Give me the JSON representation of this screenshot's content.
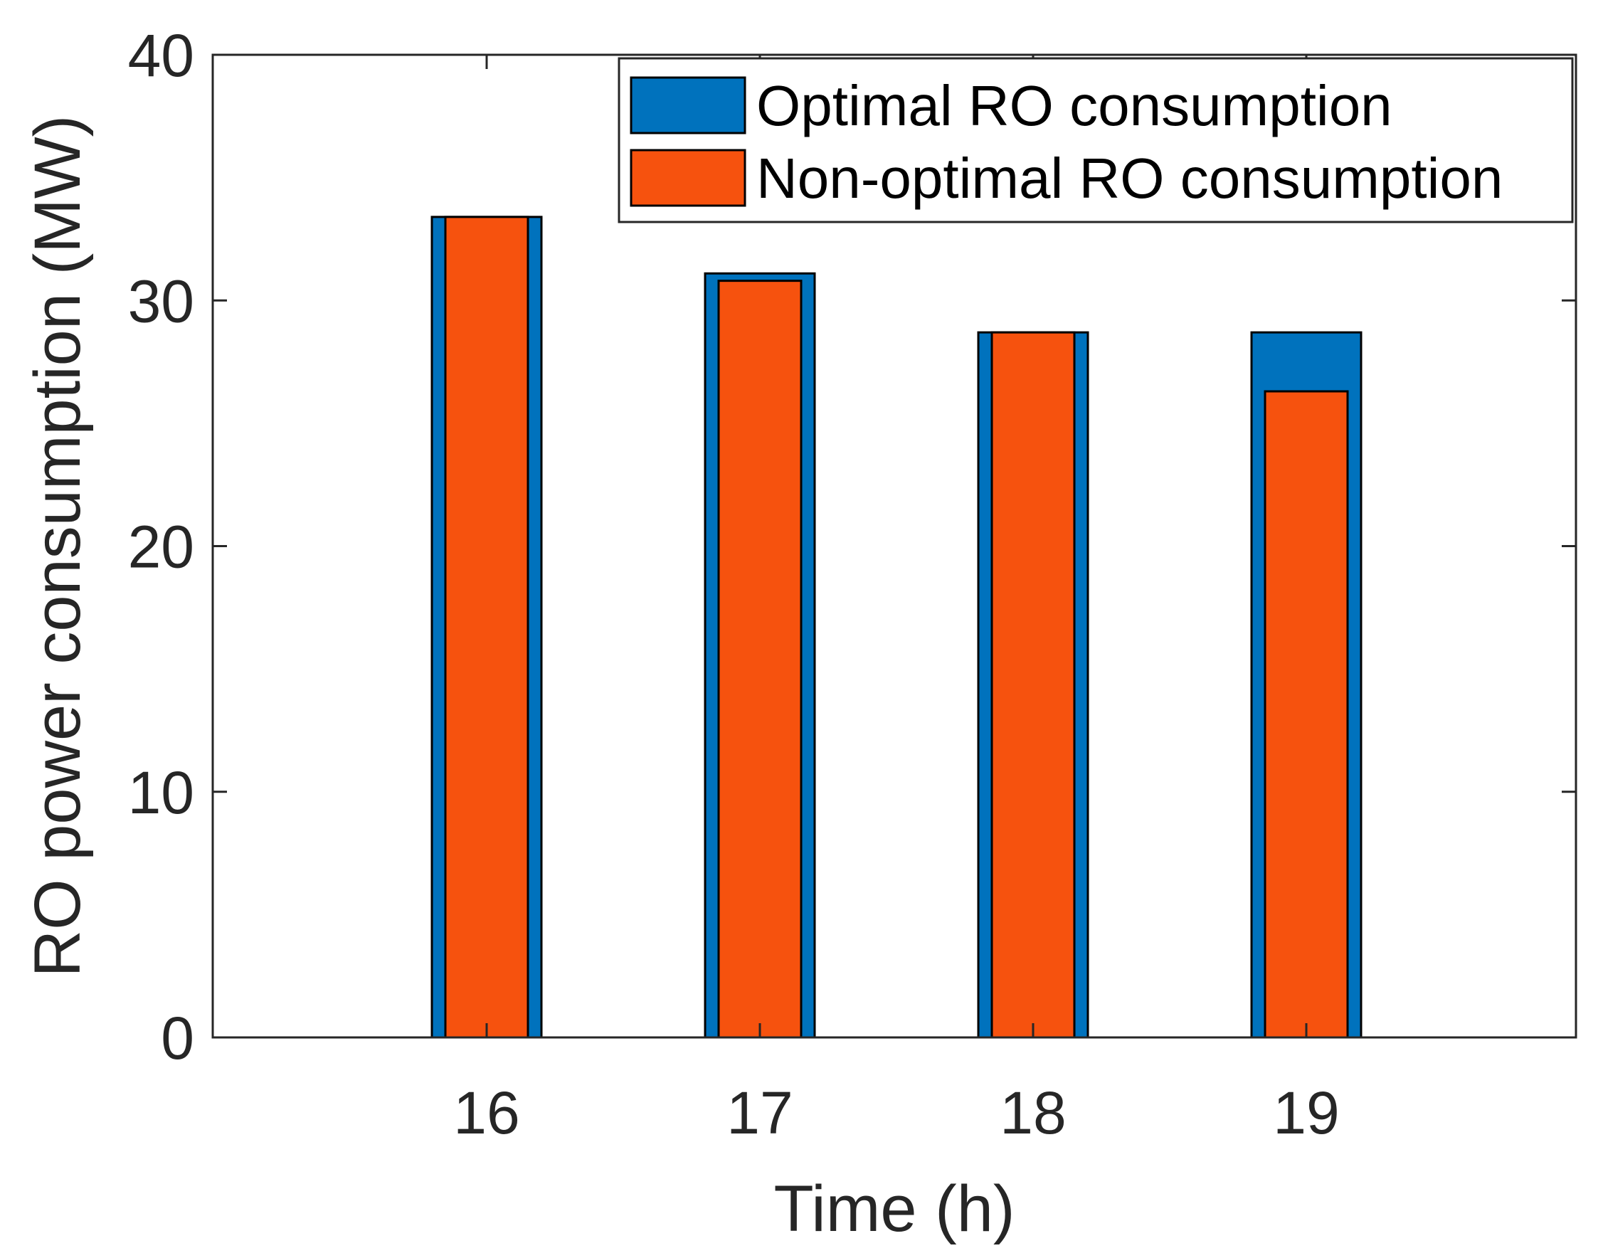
{
  "chart_data": {
    "type": "bar",
    "title": "",
    "xlabel": "Time (h)",
    "ylabel": "RO power consumption (MW)",
    "categories": [
      "16",
      "17",
      "18",
      "19"
    ],
    "ylim": [
      0,
      40
    ],
    "yticks": [
      "0",
      "10",
      "20",
      "30",
      "40"
    ],
    "grid": false,
    "legend_position": "top-right",
    "series": [
      {
        "name": "Optimal RO consumption",
        "color": "#0072BD",
        "values": [
          33.4,
          31.1,
          28.7,
          28.7
        ]
      },
      {
        "name": "Non-optimal RO consumption",
        "color": "#F6520E",
        "values": [
          33.4,
          30.8,
          28.7,
          26.3
        ]
      }
    ]
  }
}
